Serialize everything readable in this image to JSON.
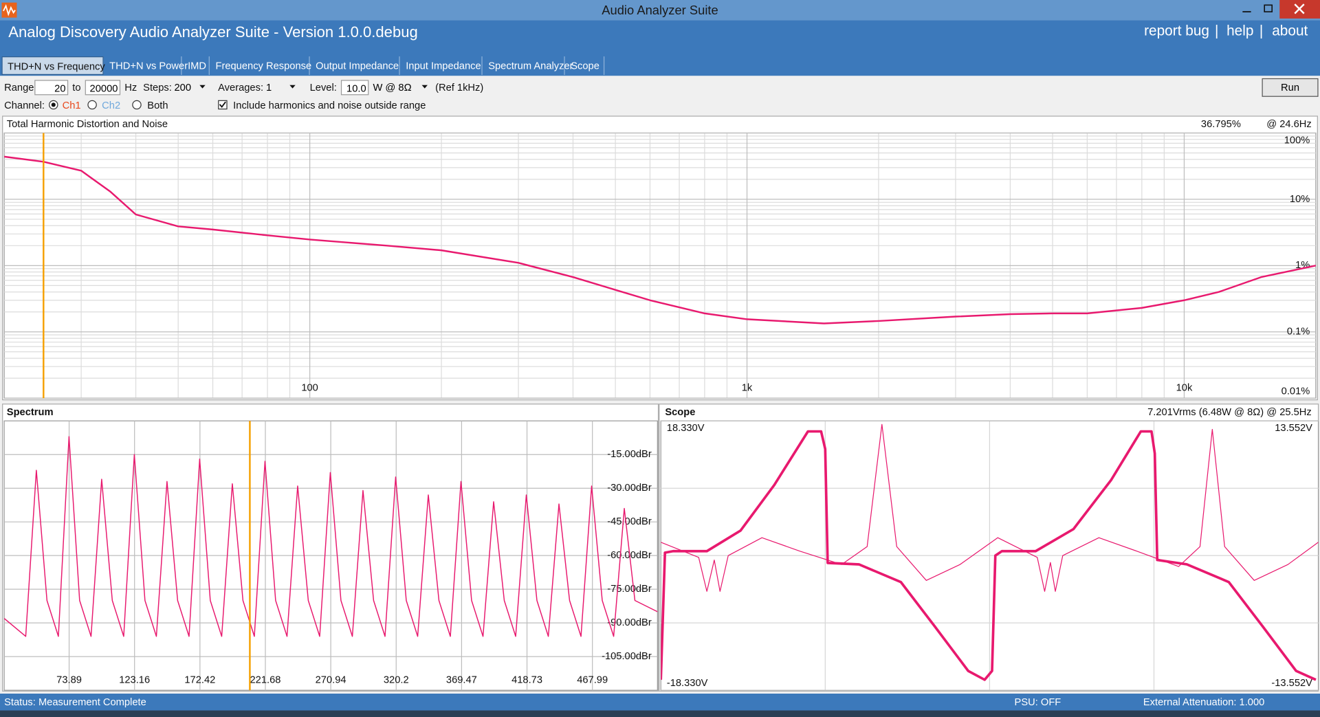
{
  "window": {
    "title": "Audio Analyzer Suite"
  },
  "header": {
    "app_title": "Analog Discovery Audio Analyzer Suite - Version   1.0.0.debug",
    "links": [
      "report bug",
      "help",
      "about"
    ],
    "separator": "|"
  },
  "tabs": {
    "items": [
      "THD+N vs Frequency",
      "THD+N vs Power",
      "IMD",
      "Frequency Response",
      "Output Impedance",
      "Input Impedance",
      "Spectrum Analyzer",
      "Scope"
    ],
    "active": 0
  },
  "controls": {
    "range_label": "Range:",
    "range_from": "20",
    "to_label": "to",
    "range_to": "20000",
    "hz_label": "Hz",
    "steps_label": "Steps:",
    "steps": "200",
    "averages_label": "Averages:",
    "averages": "1",
    "level_label": "Level:",
    "level": "10.0",
    "level_unit": "W @ 8Ω",
    "ref": "(Ref 1kHz)",
    "run": "Run",
    "channel_label": "Channel:",
    "ch1": "Ch1",
    "ch2": "Ch2",
    "both": "Both",
    "include_label": "Include harmonics and noise outside range"
  },
  "chart_data": [
    {
      "type": "line",
      "title": "Total Harmonic Distortion and Noise",
      "readout": "36.795%",
      "readout_at": "@ 24.6Hz",
      "cursor": 24.6,
      "xlog": true,
      "ylog": true,
      "xlim": [
        20,
        20000
      ],
      "ylim": [
        0.01,
        100
      ],
      "xticks": [
        100,
        {
          "value": 1000,
          "label": "1k"
        },
        {
          "value": 10000,
          "label": "10k"
        }
      ],
      "yticks": [
        {
          "value": 100,
          "label": "100%"
        },
        {
          "value": 10,
          "label": "10%"
        },
        {
          "value": 1,
          "label": "1%"
        },
        {
          "value": 0.1,
          "label": "0.1%"
        },
        {
          "value": 0.01,
          "label": "0.01%"
        }
      ],
      "grid": true,
      "x": [
        20,
        24.6,
        30,
        35,
        40,
        50,
        60,
        80,
        100,
        150,
        200,
        300,
        400,
        500,
        600,
        800,
        1000,
        1500,
        2000,
        3000,
        4000,
        5000,
        6000,
        8000,
        10000,
        12000,
        15000,
        20000
      ],
      "series": [
        {
          "color": "#e8196e",
          "width": 2,
          "values": [
            44,
            36.8,
            27,
            13,
            5.9,
            3.9,
            3.5,
            2.86,
            2.47,
            2.0,
            1.7,
            1.1,
            0.67,
            0.43,
            0.3,
            0.19,
            0.155,
            0.134,
            0.146,
            0.17,
            0.185,
            0.19,
            0.19,
            0.23,
            0.3,
            0.4,
            0.67,
            1.0
          ]
        }
      ]
    },
    {
      "type": "line",
      "title": "Spectrum",
      "cursor": 210,
      "xlim": [
        25,
        517
      ],
      "ylim": [
        -120,
        0
      ],
      "xticks": [
        73.89,
        123.16,
        172.42,
        221.68,
        270.94,
        320.2,
        369.47,
        418.73,
        467.99
      ],
      "yticks": [
        {
          "value": -15,
          "label": "-15.00dBr"
        },
        {
          "value": -30,
          "label": "-30.00dBr"
        },
        {
          "value": -45,
          "label": "-45.00dBr"
        },
        {
          "value": -60,
          "label": "-60.00dBr"
        },
        {
          "value": -75,
          "label": "-75.00dBr"
        },
        {
          "value": -90,
          "label": "-90.00dBr"
        },
        {
          "value": -105,
          "label": "-105.00dBr"
        }
      ],
      "grid": true,
      "x": [
        25,
        41.2,
        49.2,
        57.2,
        65.8,
        73.8,
        81.8,
        90.4,
        98.4,
        106.4,
        115,
        123,
        131,
        139.6,
        147.6,
        155.6,
        164.2,
        172.2,
        180.2,
        188.8,
        196.8,
        204.8,
        213.4,
        221.4,
        229.4,
        238,
        246,
        254,
        262.6,
        270.6,
        278.6,
        287.2,
        295.2,
        303.2,
        311.8,
        319.8,
        327.8,
        336.4,
        344.4,
        352.4,
        361,
        369,
        377,
        385.6,
        393.6,
        401.6,
        410.2,
        418.2,
        426.2,
        434.8,
        442.8,
        450.8,
        459.4,
        467.4,
        475.4,
        484,
        492,
        500,
        517
      ],
      "series": [
        {
          "color": "#e8196e",
          "width": 1.2,
          "values": [
            -88,
            -96,
            -22,
            -80,
            -96,
            -7,
            -80,
            -96,
            -26,
            -80,
            -96,
            -15,
            -80,
            -96,
            -27,
            -80,
            -96,
            -17,
            -80,
            -96,
            -28,
            -80,
            -96,
            -18,
            -80,
            -96,
            -29,
            -80,
            -96,
            -23,
            -80,
            -96,
            -31,
            -80,
            -96,
            -25,
            -80,
            -96,
            -33,
            -80,
            -96,
            -27,
            -80,
            -96,
            -36,
            -80,
            -96,
            -33,
            -80,
            -96,
            -37,
            -80,
            -96,
            -29,
            -80,
            -96,
            -39,
            -80,
            -85
          ]
        }
      ]
    },
    {
      "type": "scope",
      "title": "Scope",
      "readout": "7.201Vrms (6.48W @ 8Ω) @ 25.5Hz",
      "xlim": [
        0,
        80
      ],
      "ylim": [
        -18.33,
        18.33
      ],
      "y2lim": [
        -13.552,
        13.552
      ],
      "yticks": [
        {
          "value": 18.33,
          "label": "18.330V"
        },
        {
          "value": -18.33,
          "label": "-18.330V"
        }
      ],
      "y2ticks": [
        {
          "value": 13.552,
          "label": "13.552V"
        },
        {
          "value": -13.552,
          "label": "-13.552V"
        }
      ],
      "series": [
        {
          "color": "#e8196e",
          "width": 3,
          "x": [
            0,
            0.5,
            1.5,
            5.6,
            9.7,
            13.8,
            17.9,
            19.5,
            20,
            20.3,
            24.1,
            29.2,
            33.3,
            37.4,
            39.4,
            40.3,
            40.7,
            41.5,
            45.6,
            50.2,
            54.8,
            58.4,
            59.7,
            60.1,
            60.4,
            64,
            69.1,
            73.2,
            77.3,
            79.7
          ],
          "values": [
            -16.9,
            0.4,
            0.6,
            0.6,
            3.4,
            9.6,
            16.9,
            16.9,
            14.5,
            -1.0,
            -1.2,
            -3.6,
            -9.6,
            -15.7,
            -16.9,
            -15.7,
            0,
            0.6,
            0.6,
            3.6,
            10.3,
            16.9,
            16.9,
            13.9,
            -0.6,
            -1.2,
            -3.6,
            -9.6,
            -15.7,
            -16.9
          ]
        },
        {
          "color": "#e8196e",
          "width": 1,
          "axis": "y2",
          "x": [
            0,
            4.6,
            5.6,
            6.5,
            7.2,
            8.2,
            12.3,
            16.9,
            22,
            25.1,
            26.9,
            28.7,
            32.3,
            36.4,
            41,
            45.8,
            46.7,
            47.4,
            48,
            48.9,
            53.3,
            57.9,
            63,
            65.6,
            67.1,
            68.6,
            72.2,
            76.3,
            80
          ],
          "values": [
            1.34,
            -0.18,
            -3.6,
            -0.45,
            -3.6,
            0,
            1.8,
            0.45,
            -0.9,
            0.9,
            13.2,
            0.9,
            -2.5,
            -0.9,
            1.8,
            -0.18,
            -3.6,
            -0.7,
            -3.6,
            0,
            1.8,
            0.45,
            -1.1,
            0.9,
            12.7,
            0.9,
            -2.5,
            -0.9,
            1.34
          ]
        }
      ]
    }
  ],
  "status": {
    "message": "Status: Measurement Complete",
    "psu": "PSU: OFF",
    "attenuation": "External Attenuation: 1.000"
  }
}
